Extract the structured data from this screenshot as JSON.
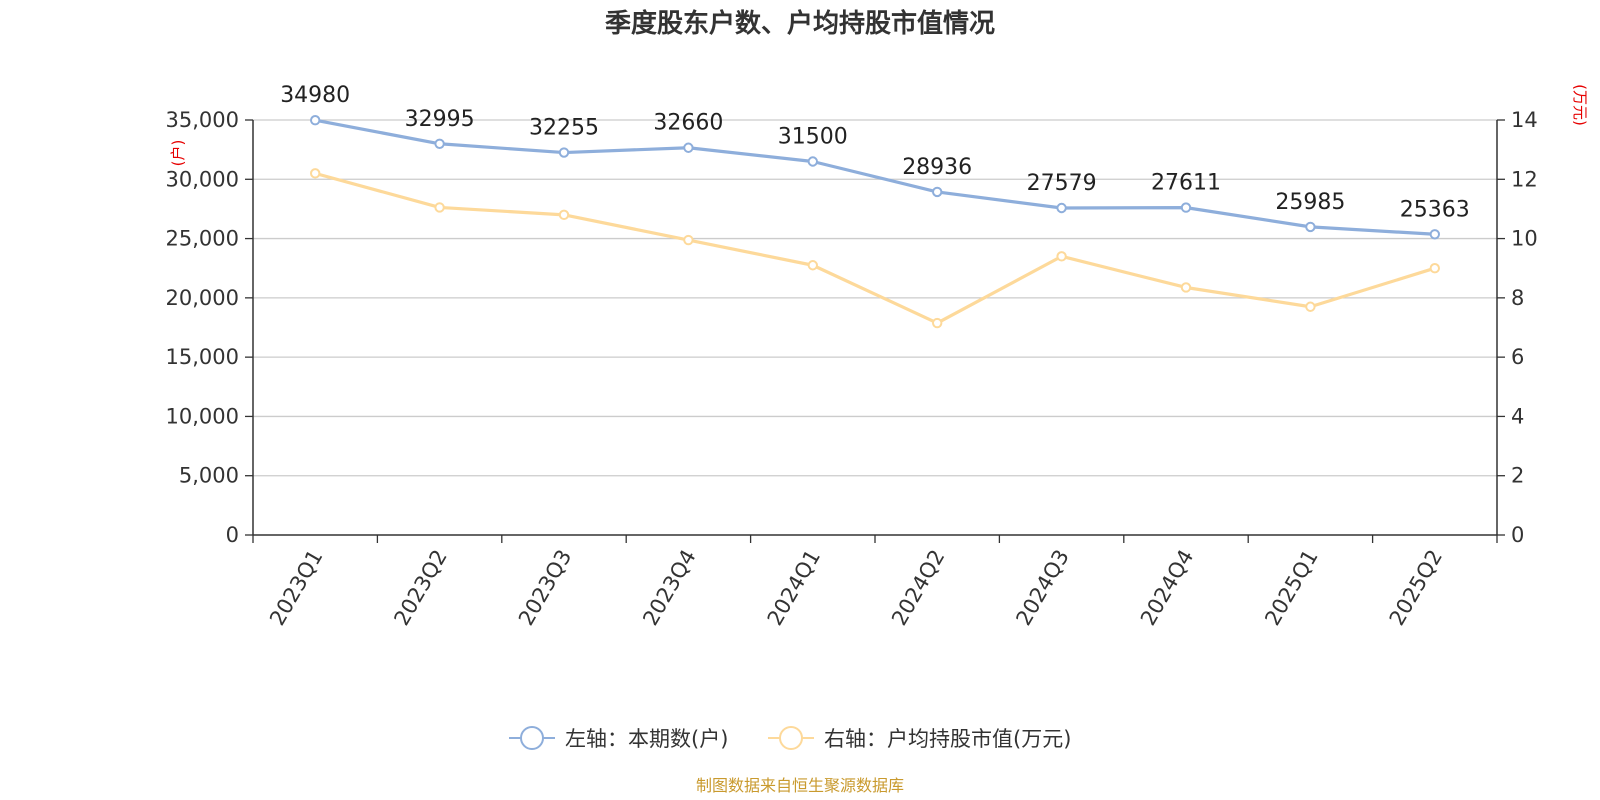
{
  "chart_data": {
    "type": "line",
    "title": "季度股东户数、户均持股市值情况",
    "categories": [
      "2023Q1",
      "2023Q2",
      "2023Q3",
      "2023Q4",
      "2024Q1",
      "2024Q2",
      "2024Q3",
      "2024Q4",
      "2025Q1",
      "2025Q2"
    ],
    "series": [
      {
        "name": "左轴：本期数(户)",
        "axis": "left",
        "color": "#8eaedb",
        "values": [
          34980,
          32995,
          32255,
          32660,
          31500,
          28936,
          27579,
          27611,
          25985,
          25363
        ],
        "show_labels": true
      },
      {
        "name": "右轴：户均持股市值(万元)",
        "axis": "right",
        "color": "#fdd99a",
        "values": [
          12.2,
          11.05,
          10.8,
          9.95,
          9.1,
          7.15,
          9.4,
          8.35,
          7.7,
          9.0
        ],
        "show_labels": false
      }
    ],
    "left_axis": {
      "unit": "(户)",
      "ylim": [
        0,
        35000
      ],
      "ticks": [
        0,
        5000,
        10000,
        15000,
        20000,
        25000,
        30000,
        35000
      ],
      "tick_labels": [
        "0",
        "5,000",
        "10,000",
        "15,000",
        "20,000",
        "25,000",
        "30,000",
        "35,000"
      ]
    },
    "right_axis": {
      "unit": "(万元)",
      "ylim": [
        0,
        14
      ],
      "ticks": [
        0,
        2,
        4,
        6,
        8,
        10,
        12,
        14
      ],
      "tick_labels": [
        "0",
        "2",
        "4",
        "6",
        "8",
        "10",
        "12",
        "14"
      ]
    },
    "grid": true,
    "legend_position": "bottom-center",
    "source": "制图数据来自恒生聚源数据库"
  }
}
